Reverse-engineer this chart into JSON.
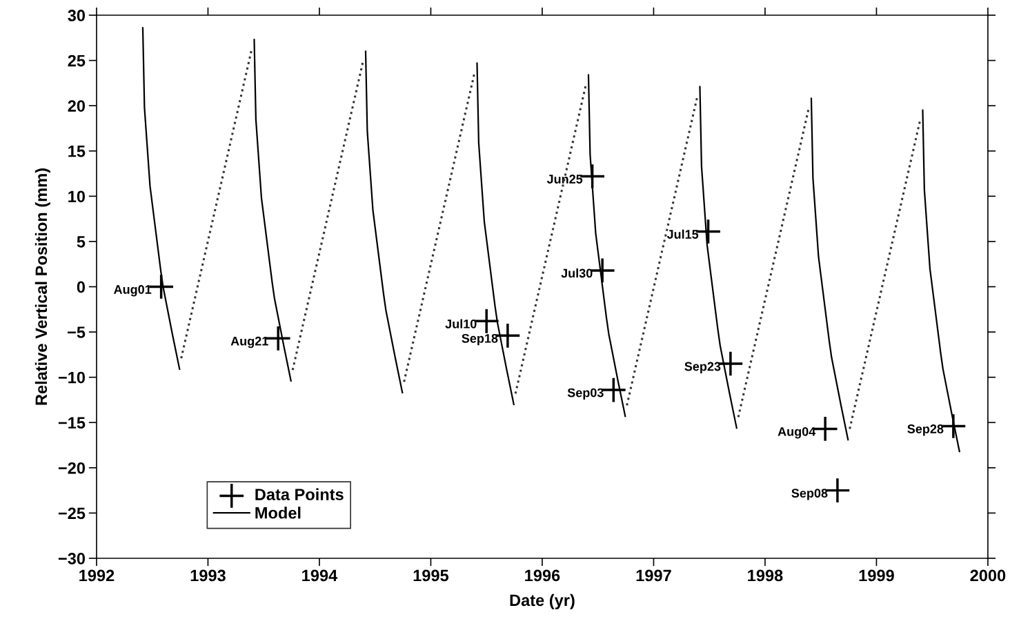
{
  "chart_data": {
    "type": "line",
    "xlabel": "Date (yr)",
    "ylabel": "Relative Vertical Position (mm)",
    "xlim": [
      1992,
      2000
    ],
    "xticks": [
      1992,
      1993,
      1994,
      1995,
      1996,
      1997,
      1998,
      1999,
      2000
    ],
    "ylim": [
      -30,
      30
    ],
    "yticks": [
      -30,
      -25,
      -20,
      -15,
      -10,
      -5,
      0,
      5,
      10,
      15,
      20,
      25,
      30
    ],
    "grid": false,
    "legend": "bottom left",
    "series": [
      {
        "name": "Data Points",
        "type": "scatter",
        "marker": "cross",
        "color": "#000000",
        "x": [
          1992.58,
          1993.63,
          1995.5,
          1995.69,
          1996.45,
          1996.54,
          1996.64,
          1997.49,
          1997.69,
          1998.54,
          1998.65,
          1999.69
        ],
        "values": [
          0,
          -5.7,
          -3.8,
          -5.4,
          12.2,
          1.8,
          -11.4,
          6.1,
          -8.5,
          -15.7,
          -22.5,
          -15.4
        ]
      },
      {
        "name": "Model",
        "line_style": "solid",
        "color": "#000000",
        "x": [
          1992.415,
          1992.43,
          1992.48,
          1992.576,
          1992.597,
          1992.68,
          1992.745,
          null,
          1993.415,
          1993.43,
          1993.48,
          1993.576,
          1993.597,
          1993.68,
          1993.745,
          null,
          1994.415,
          1994.43,
          1994.48,
          1994.576,
          1994.597,
          1994.68,
          1994.745,
          null,
          1995.415,
          1995.43,
          1995.48,
          1995.576,
          1995.597,
          1995.68,
          1995.745,
          null,
          1996.415,
          1996.43,
          1996.48,
          1996.576,
          1996.597,
          1996.68,
          1996.745,
          null,
          1997.415,
          1997.43,
          1997.48,
          1997.576,
          1997.597,
          1997.68,
          1997.745,
          null,
          1998.415,
          1998.43,
          1998.48,
          1998.576,
          1998.597,
          1998.68,
          1998.745,
          null,
          1999.415,
          1999.43,
          1999.48,
          1999.576,
          1999.597,
          1999.68,
          1999.745
        ],
        "values": [
          28.6,
          19.8,
          11.1,
          1.8,
          0,
          -5.2,
          -9.1,
          null,
          27.3,
          18.5,
          9.8,
          0.5,
          -1.3,
          -6.5,
          -10.4,
          null,
          26.0,
          17.2,
          8.5,
          -0.8,
          -2.6,
          -7.8,
          -11.7,
          null,
          24.7,
          15.9,
          7.2,
          -2.1,
          -3.9,
          -9.1,
          -13.0,
          null,
          23.4,
          14.6,
          5.9,
          -3.4,
          -5.2,
          -10.4,
          -14.3,
          null,
          22.1,
          13.3,
          4.6,
          -4.7,
          -6.5,
          -11.7,
          -15.6,
          null,
          20.8,
          12.0,
          3.3,
          -6.0,
          -7.8,
          -13.0,
          -16.9,
          null,
          19.5,
          10.7,
          2.0,
          -7.3,
          -9.1,
          -14.3,
          -18.2
        ]
      },
      {
        "line_style": "dotted",
        "color": "#333333",
        "x": [
          1992.76,
          1993.39,
          null,
          1993.76,
          1994.39,
          null,
          1994.76,
          1995.39,
          null,
          1995.76,
          1996.39,
          null,
          1996.76,
          1997.39,
          null,
          1997.76,
          1998.39,
          null,
          1998.76,
          1999.39
        ],
        "values": [
          -7.9,
          26.1,
          null,
          -9.2,
          24.8,
          null,
          -10.5,
          23.5,
          null,
          -11.8,
          22.2,
          null,
          -13.1,
          20.9,
          null,
          -14.4,
          19.6,
          null,
          -15.7,
          18.3
        ]
      }
    ],
    "annotations": [
      {
        "text": "Aug01",
        "x": 1992.58,
        "y": 0
      },
      {
        "text": "Aug21",
        "x": 1993.63,
        "y": -5.7
      },
      {
        "text": "Jul10",
        "x": 1995.5,
        "y": -3.8
      },
      {
        "text": "Sep18",
        "x": 1995.69,
        "y": -5.4
      },
      {
        "text": "Jun25",
        "x": 1996.45,
        "y": 12.2
      },
      {
        "text": "Jul30",
        "x": 1996.54,
        "y": 1.8
      },
      {
        "text": "Sep03",
        "x": 1996.64,
        "y": -11.4
      },
      {
        "text": "Jul15",
        "x": 1997.49,
        "y": 6.1
      },
      {
        "text": "Sep23",
        "x": 1997.69,
        "y": -8.5
      },
      {
        "text": "Aug04",
        "x": 1998.54,
        "y": -15.7
      },
      {
        "text": "Sep08",
        "x": 1998.65,
        "y": -22.5
      },
      {
        "text": "Sep28",
        "x": 1999.69,
        "y": -15.4
      }
    ]
  }
}
